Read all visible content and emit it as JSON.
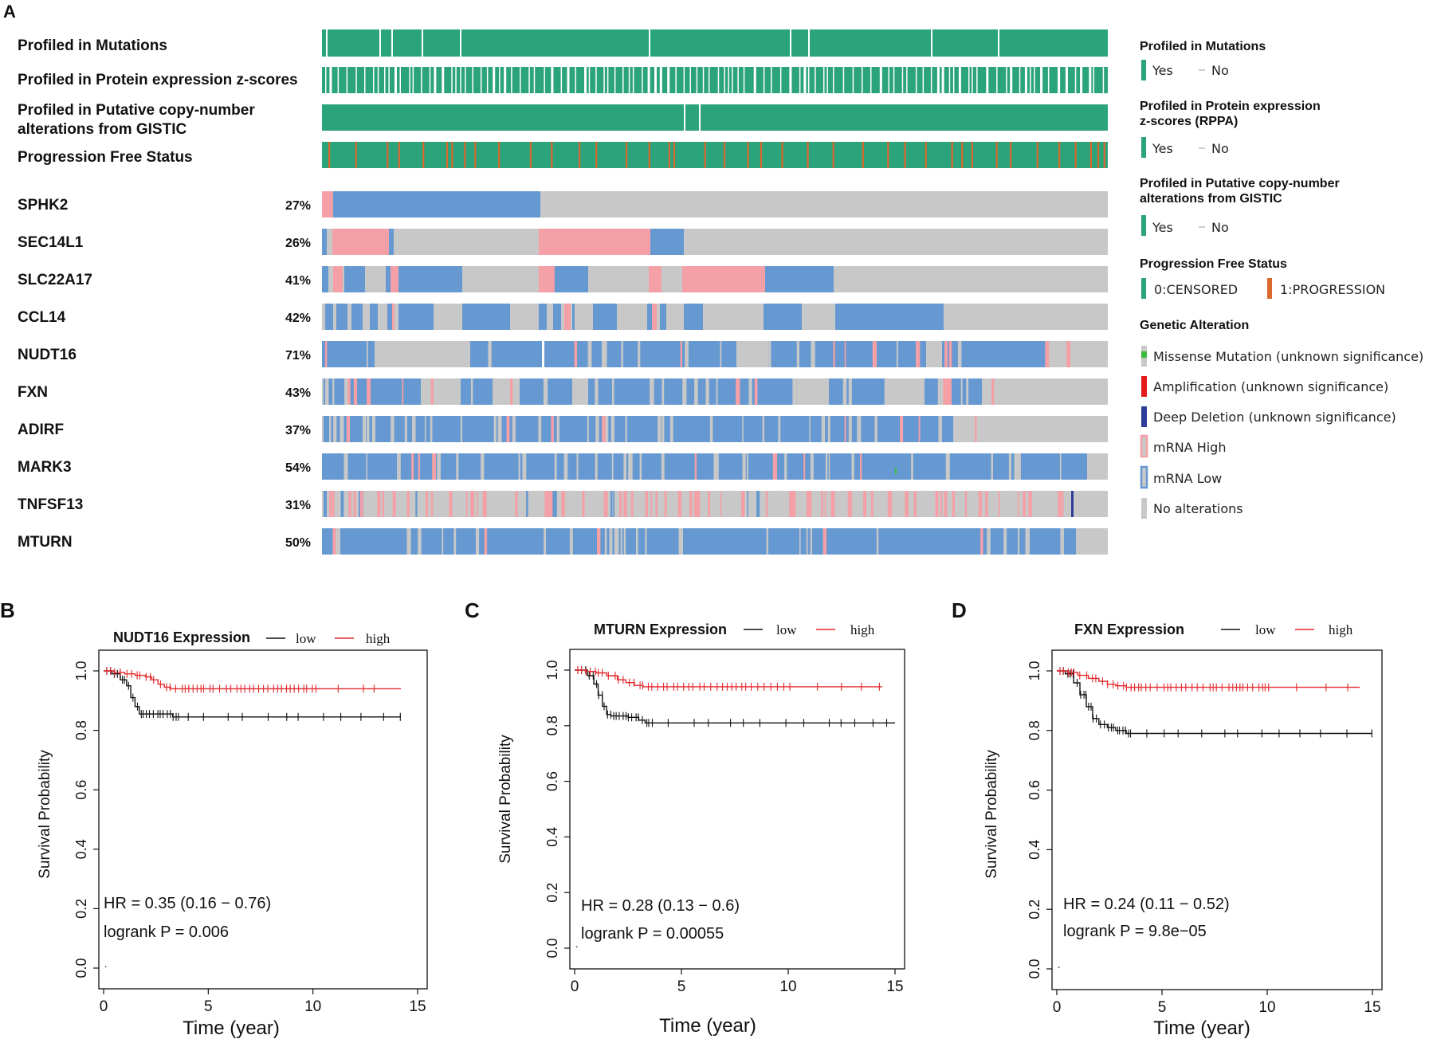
{
  "colors": {
    "profiled": "#2ba37b",
    "progression": "#d9682e",
    "missense": "#3cba3c",
    "amplification": "#e41a1c",
    "deep_deletion": "#2f3d9a",
    "mrna_high": "#f4a0a6",
    "mrna_low": "#6699d1",
    "no_alt": "#c8c8c8",
    "km_low": "#111111",
    "km_high": "#e3282c"
  },
  "panel_a": {
    "letter": "A",
    "tracks": [
      {
        "id": "mutations",
        "label": "Profiled in Mutations"
      },
      {
        "id": "protein",
        "label": "Profiled in Protein expression z-scores"
      },
      {
        "id": "cna",
        "label": "Profiled in Putative copy-number",
        "label2": "alterations from GISTIC"
      },
      {
        "id": "pfs",
        "label": "Progression Free Status"
      }
    ],
    "genes": [
      {
        "name": "SPHK2",
        "pct": "27%"
      },
      {
        "name": "SEC14L1",
        "pct": "26%"
      },
      {
        "name": "SLC22A17",
        "pct": "41%"
      },
      {
        "name": "CCL14",
        "pct": "42%"
      },
      {
        "name": "NUDT16",
        "pct": "71%"
      },
      {
        "name": "FXN",
        "pct": "43%"
      },
      {
        "name": "ADIRF",
        "pct": "37%"
      },
      {
        "name": "MARK3",
        "pct": "54%"
      },
      {
        "name": "TNFSF13",
        "pct": "31%"
      },
      {
        "name": "MTURN",
        "pct": "50%"
      }
    ],
    "legend": {
      "mutations_title": "Profiled in Mutations",
      "protein_title1": "Profiled in Protein expression",
      "protein_title2": "z-scores (RPPA)",
      "cna_title1": "Profiled in Putative copy-number",
      "cna_title2": "alterations from GISTIC",
      "yes": "Yes",
      "no": "No",
      "pfs_title": "Progression Free Status",
      "censored": "0:CENSORED",
      "progression": "1:PROGRESSION",
      "genetic_title": "Genetic Alteration",
      "missense": "Missense Mutation (unknown significance)",
      "amplification": "Amplification (unknown significance)",
      "deep_deletion": "Deep Deletion (unknown significance)",
      "mrna_high": "mRNA High",
      "mrna_low": "mRNA Low",
      "no_alt": "No alterations"
    }
  },
  "chart_data": [
    {
      "type": "line",
      "panel": "B",
      "title": "NUDT16 Expression",
      "legend": [
        "low",
        "high"
      ],
      "xlabel": "Time (year)",
      "ylabel": "Survival Probability",
      "xlim": [
        0,
        15
      ],
      "ylim": [
        0,
        1
      ],
      "xticks": [
        "0",
        "5",
        "10",
        "15"
      ],
      "yticks": [
        "0.0",
        "0.2",
        "0.4",
        "0.6",
        "0.8",
        "1.0"
      ],
      "hr_text": "HR = 0.35 (0.16 − 0.76)",
      "p_text": "logrank P = 0.006",
      "series": [
        {
          "name": "low",
          "x": [
            0,
            0.4,
            0.8,
            1.1,
            1.3,
            1.5,
            1.7,
            2.0,
            2.5,
            3.3,
            14.2
          ],
          "y": [
            1.0,
            0.99,
            0.97,
            0.95,
            0.91,
            0.88,
            0.855,
            0.855,
            0.855,
            0.845,
            0.845
          ]
        },
        {
          "name": "high",
          "x": [
            0,
            0.5,
            1.0,
            1.5,
            2.0,
            2.3,
            2.6,
            2.9,
            3.2,
            14.2
          ],
          "y": [
            1.0,
            0.995,
            0.99,
            0.985,
            0.98,
            0.97,
            0.955,
            0.945,
            0.94,
            0.94
          ]
        }
      ]
    },
    {
      "type": "line",
      "panel": "C",
      "title": "MTURN Expression",
      "legend": [
        "low",
        "high"
      ],
      "xlabel": "Time (year)",
      "ylabel": "Survival Probability",
      "xlim": [
        0,
        15
      ],
      "ylim": [
        0,
        1
      ],
      "xticks": [
        "0",
        "5",
        "10",
        "15"
      ],
      "yticks": [
        "0.0",
        "0.2",
        "0.4",
        "0.6",
        "0.8",
        "1.0"
      ],
      "hr_text": "HR = 0.28 (0.13 − 0.6)",
      "p_text": "logrank P = 0.00055",
      "series": [
        {
          "name": "low",
          "x": [
            0,
            0.6,
            0.9,
            1.1,
            1.3,
            1.5,
            1.7,
            2.5,
            3.0,
            3.3,
            15.0
          ],
          "y": [
            1.0,
            0.98,
            0.95,
            0.91,
            0.87,
            0.84,
            0.835,
            0.83,
            0.82,
            0.81,
            0.81
          ]
        },
        {
          "name": "high",
          "x": [
            0,
            0.5,
            1.0,
            1.5,
            2.0,
            2.4,
            2.8,
            3.2,
            14.4
          ],
          "y": [
            1.0,
            0.995,
            0.99,
            0.98,
            0.965,
            0.955,
            0.945,
            0.94,
            0.94
          ]
        }
      ]
    },
    {
      "type": "line",
      "panel": "D",
      "title": "FXN Expression",
      "legend": [
        "low",
        "high"
      ],
      "xlabel": "Time (year)",
      "ylabel": "Survival Probability",
      "xlim": [
        0,
        15
      ],
      "ylim": [
        0,
        1
      ],
      "xticks": [
        "0",
        "5",
        "10",
        "15"
      ],
      "yticks": [
        "0.0",
        "0.2",
        "0.4",
        "0.6",
        "0.8",
        "1.0"
      ],
      "hr_text": "HR = 0.24 (0.11 − 0.52)",
      "p_text": "logrank P = 9.8e−05",
      "series": [
        {
          "name": "low",
          "x": [
            0,
            0.4,
            0.8,
            1.1,
            1.4,
            1.7,
            2.0,
            2.4,
            2.8,
            3.3,
            15.0
          ],
          "y": [
            1.0,
            0.99,
            0.96,
            0.92,
            0.88,
            0.84,
            0.82,
            0.81,
            0.8,
            0.79,
            0.79
          ]
        },
        {
          "name": "high",
          "x": [
            0,
            0.5,
            1.0,
            1.5,
            2.0,
            2.4,
            2.8,
            3.3,
            14.4
          ],
          "y": [
            1.0,
            0.995,
            0.985,
            0.975,
            0.965,
            0.955,
            0.95,
            0.945,
            0.945
          ]
        }
      ]
    }
  ]
}
